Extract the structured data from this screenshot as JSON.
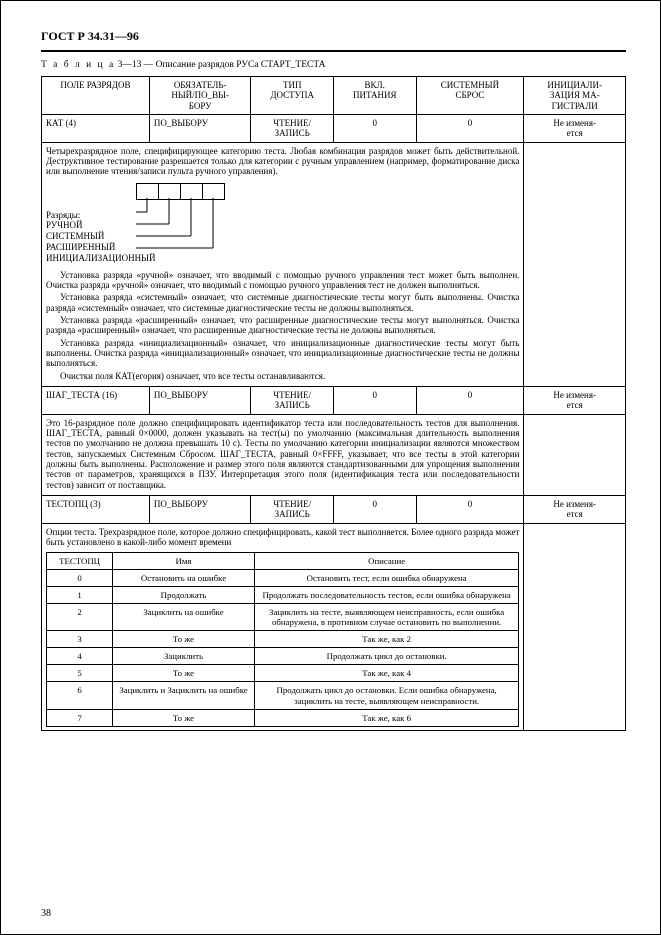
{
  "doc_title": "ГОСТ Р 34.31—96",
  "table_caption_prefix": "Т а б л и ц а",
  "table_caption_num": "3—13 — Описание разрядов РУСа СТАРТ_ТЕСТА",
  "headers": {
    "c1": "ПОЛЕ РАЗРЯДОВ",
    "c2": "ОБЯЗАТЕЛЬ-\nНЫЙ/ПО_ВЫ-\nБОРУ",
    "c3": "ТИП\nДОСТУПА",
    "c4": "ВКЛ.\nПИТАНИЯ",
    "c5": "СИСТЕМНЫЙ\nСБРОС",
    "c6": "ИНИЦИАЛИ-\nЗАЦИЯ МА-\nГИСТРАЛИ"
  },
  "row_kat": {
    "name": "КАТ (4)",
    "oblig": "ПО_ВЫБОРУ",
    "access": "ЧТЕНИЕ/\nЗАПИСЬ",
    "pwr": "0",
    "reset": "0",
    "init": "Не изменя-\nется"
  },
  "kat_desc_top": "Четырехразрядное поле, специфицирующее категорию теста. Любая комбинация разрядов может быть действительной. Деструктивное тестирование разрешается только для категории с ручным управлением (например, форматирование диска или выполнение чтения/записи пульта ручного управления).",
  "bit_label_title": "Разряды:",
  "bit_labels": {
    "b1": "РУЧНОЙ",
    "b2": "СИСТЕМНЫЙ",
    "b3": "РАСШИРЕННЫЙ",
    "b4": "ИНИЦИАЛИЗАЦИОННЫЙ"
  },
  "kat_desc_p1": "Установка разряда «ручной» означает, что вводимый с помощью ручного управления тест может быть выполнен. Очистка разряда «ручной» означает, что вводимый с помощью ручного управления тест не должен выполняться.",
  "kat_desc_p2": "Установка разряда «системный» означает, что системные диагностические тесты могут быть выполнены. Очистка разряда «системный» означает, что системные диагностические тесты не должны выполняться.",
  "kat_desc_p3": "Установка разряда «расширенный» означает, что расширенные диагностические тесты могут выполняться. Очистка разряда «расширенный» означает, что расширенные диагностические тесты не должны выполняться.",
  "kat_desc_p4": "Установка разряда «инициализационный» означает, что инициализационные диагностические тесты могут быть выполнены. Очистка разряда «инициализационный» означает, что инициализационные диагностические тесты не должны выполняться.",
  "kat_desc_p5": "Очистки поля КАТ(егория) означает, что все тесты останавливаются.",
  "row_shag": {
    "name": "ШАГ_ТЕСТА (16)",
    "oblig": "ПО_ВЫБОРУ",
    "access": "ЧТЕНИЕ/\nЗАПИСЬ",
    "pwr": "0",
    "reset": "0",
    "init": "Не изменя-\nется"
  },
  "shag_desc": "Это 16-разрядное поле должно специфицировать идентификатор теста или последовательность тестов для выполнения. ШАГ_ТЕСТА, равный 0×0000, должен указывать на тест(ы) по умолчанию (максимальная длительность выполнения тестов по умолчанию не должна превышать 10 с). Тесты по умолчанию категории инициализации являются множеством тестов, запускаемых Системным Сбросом. ШАГ_ТЕСТА, равный 0×FFFF, указывает, что все тесты в этой категории должны быть выполнены. Расположение и размер этого поля являются стандартизованными для упрощения выполнения тестов от параметров, хранящихся в ПЗУ. Интерпретация этого поля (идентификация теста или последовательности тестов) зависит от поставщика.",
  "row_test": {
    "name": "ТЕСТОПЦ (3)",
    "oblig": "ПО_ВЫБОРУ",
    "access": "ЧТЕНИЕ/\nЗАПИСЬ",
    "pwr": "0",
    "reset": "0",
    "init": "Не изменя-\nется"
  },
  "test_desc_top": "Опции теста. Трехразрядное поле, которое должно специфицировать, какой тест выполняется. Более одного разряда может быть установлено в какой-либо момент времени",
  "testtab_head": {
    "c1": "ТЕСТОПЦ",
    "c2": "Имя",
    "c3": "Описание"
  },
  "testtab_rows": [
    {
      "n": "0",
      "name": "Остановить на ошибке",
      "desc": "Остановить тест, если ошибка обнаружена"
    },
    {
      "n": "1",
      "name": "Продолжать",
      "desc": "Продолжать последовательность тестов, если ошибка обнаружена"
    },
    {
      "n": "2",
      "name": "Зациклить на ошибке",
      "desc": "Зациклить на тесте, выявляющем неисправность, если ошибка обнаружена, в противном случае остановить по выполнении."
    },
    {
      "n": "3",
      "name": "То же",
      "desc": "Так же, как 2"
    },
    {
      "n": "4",
      "name": "Зациклить",
      "desc": "Продолжать цикл до остановки."
    },
    {
      "n": "5",
      "name": "То же",
      "desc": "Так же, как 4"
    },
    {
      "n": "6",
      "name": "Зациклить и Зациклить на ошибке",
      "desc": "Продолжать цикл до остановки. Если ошибка обнаружена, зациклить на тесте, выявляющем неисправности."
    },
    {
      "n": "7",
      "name": "То же",
      "desc": "Так же, как 6"
    }
  ],
  "page_number": "38"
}
